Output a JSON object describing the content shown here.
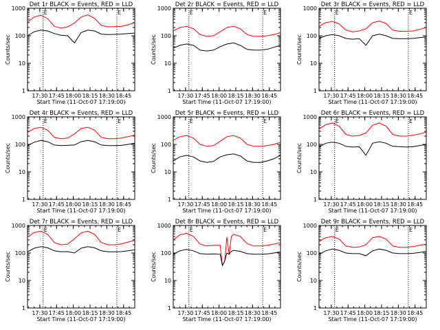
{
  "figure": {
    "background": "#ffffff",
    "colors": {
      "events": "#000000",
      "lld": "#ff0000",
      "axes": "#000000"
    }
  },
  "chart_data": [
    {
      "type": "line",
      "title": "Det 1r BLACK = Events, RED = LLD",
      "xlabel": "Start Time (11-Oct-07 17:19:00)",
      "ylabel": "Counts/sec",
      "yscale": "log",
      "ylim": [
        1,
        1000
      ],
      "xlim": [
        "17:19:00",
        "18:55:00"
      ],
      "xticks": [
        "17:30",
        "17:45",
        "18:00",
        "18:15",
        "18:30",
        "18:45"
      ],
      "yticks": [
        "1",
        "10",
        "100",
        "1000"
      ],
      "flags": [
        "E",
        "E"
      ],
      "x": [
        "17:19",
        "17:25",
        "17:31",
        "17:37",
        "17:43",
        "17:49",
        "17:55",
        "18:01",
        "18:07",
        "18:13",
        "18:19",
        "18:25",
        "18:31",
        "18:37",
        "18:43",
        "18:49",
        "18:55"
      ],
      "series": [
        {
          "name": "LLD",
          "color": "#ff0000",
          "values": [
            320,
            480,
            560,
            420,
            220,
            190,
            210,
            290,
            480,
            580,
            430,
            240,
            210,
            215,
            220,
            250,
            300
          ]
        },
        {
          "name": "Events",
          "color": "#000000",
          "values": [
            100,
            140,
            160,
            150,
            120,
            105,
            100,
            55,
            130,
            160,
            150,
            115,
            110,
            112,
            115,
            120,
            125
          ]
        }
      ]
    },
    {
      "type": "line",
      "title": "Det 2r BLACK = Events, RED = LLD",
      "xlabel": "Start Time (11-Oct-07 17:19:00)",
      "ylabel": "Counts/sec",
      "yscale": "log",
      "ylim": [
        1,
        1000
      ],
      "xlim": [
        "17:19:00",
        "18:55:00"
      ],
      "xticks": [
        "17:30",
        "17:45",
        "18:00",
        "18:15",
        "18:30",
        "18:45"
      ],
      "yticks": [
        "1",
        "10",
        "100",
        "1000"
      ],
      "flags": [
        "E",
        "E"
      ],
      "x": [
        "17:19",
        "17:25",
        "17:31",
        "17:37",
        "17:43",
        "17:49",
        "17:55",
        "18:01",
        "18:07",
        "18:13",
        "18:19",
        "18:25",
        "18:31",
        "18:37",
        "18:43",
        "18:49",
        "18:55"
      ],
      "series": [
        {
          "name": "LLD",
          "color": "#ff0000",
          "values": [
            150,
            200,
            220,
            180,
            110,
            95,
            100,
            140,
            200,
            220,
            180,
            110,
            95,
            95,
            100,
            110,
            130
          ]
        },
        {
          "name": "Events",
          "color": "#000000",
          "values": [
            35,
            45,
            50,
            45,
            30,
            28,
            30,
            40,
            50,
            55,
            45,
            32,
            30,
            30,
            32,
            38,
            45
          ]
        }
      ]
    },
    {
      "type": "line",
      "title": "Det 3r BLACK = Events, RED = LLD",
      "xlabel": "Start Time (11-Oct-07 17:19:00)",
      "ylabel": "Counts/sec",
      "yscale": "log",
      "ylim": [
        1,
        1000
      ],
      "xlim": [
        "17:19:00",
        "18:55:00"
      ],
      "xticks": [
        "17:30",
        "17:45",
        "18:00",
        "18:15",
        "18:30",
        "18:45"
      ],
      "yticks": [
        "1",
        "10",
        "100",
        "1000"
      ],
      "flags": [
        "E",
        "E"
      ],
      "x": [
        "17:19",
        "17:25",
        "17:31",
        "17:37",
        "17:43",
        "17:49",
        "17:55",
        "18:01",
        "18:07",
        "18:13",
        "18:19",
        "18:25",
        "18:31",
        "18:37",
        "18:43",
        "18:49",
        "18:55"
      ],
      "series": [
        {
          "name": "LLD",
          "color": "#ff0000",
          "values": [
            220,
            300,
            330,
            270,
            160,
            140,
            150,
            180,
            300,
            340,
            280,
            160,
            145,
            145,
            150,
            170,
            200
          ]
        },
        {
          "name": "Events",
          "color": "#000000",
          "values": [
            80,
            100,
            110,
            100,
            80,
            75,
            78,
            45,
            100,
            115,
            100,
            80,
            78,
            78,
            80,
            85,
            90
          ]
        }
      ]
    },
    {
      "type": "line",
      "title": "Det 4r BLACK = Events, RED = LLD",
      "xlabel": "Start Time (11-Oct-07 17:19:00)",
      "ylabel": "Counts/sec",
      "yscale": "log",
      "ylim": [
        1,
        1000
      ],
      "xlim": [
        "17:19:00",
        "18:55:00"
      ],
      "xticks": [
        "17:30",
        "17:45",
        "18:00",
        "18:15",
        "18:30",
        "18:45"
      ],
      "yticks": [
        "1",
        "10",
        "100",
        "1000"
      ],
      "flags": [
        "E",
        "E"
      ],
      "x": [
        "17:19",
        "17:25",
        "17:31",
        "17:37",
        "17:43",
        "17:49",
        "17:55",
        "18:01",
        "18:07",
        "18:13",
        "18:19",
        "18:25",
        "18:31",
        "18:37",
        "18:43",
        "18:49",
        "18:55"
      ],
      "series": [
        {
          "name": "LLD",
          "color": "#ff0000",
          "values": [
            270,
            380,
            420,
            330,
            180,
            160,
            170,
            240,
            380,
            420,
            330,
            180,
            160,
            160,
            170,
            190,
            220
          ]
        },
        {
          "name": "Events",
          "color": "#000000",
          "values": [
            90,
            120,
            140,
            125,
            95,
            90,
            92,
            95,
            125,
            140,
            125,
            95,
            90,
            90,
            92,
            100,
            110
          ]
        }
      ]
    },
    {
      "type": "line",
      "title": "Det 5r BLACK = Events, RED = LLD",
      "xlabel": "Start Time (11-Oct-07 17:19:00)",
      "ylabel": "Counts/sec",
      "yscale": "log",
      "ylim": [
        1,
        1000
      ],
      "xlim": [
        "17:19:00",
        "18:55:00"
      ],
      "xticks": [
        "17:30",
        "17:45",
        "18:00",
        "18:15",
        "18:30",
        "18:45"
      ],
      "yticks": [
        "1",
        "10",
        "100",
        "1000"
      ],
      "flags": [
        "E",
        "E"
      ],
      "x": [
        "17:19",
        "17:25",
        "17:31",
        "17:37",
        "17:43",
        "17:49",
        "17:55",
        "18:01",
        "18:07",
        "18:13",
        "18:19",
        "18:25",
        "18:31",
        "18:37",
        "18:43",
        "18:49",
        "18:55"
      ],
      "series": [
        {
          "name": "LLD",
          "color": "#ff0000",
          "values": [
            140,
            190,
            210,
            170,
            100,
            85,
            90,
            130,
            190,
            210,
            170,
            100,
            85,
            85,
            90,
            100,
            120
          ]
        },
        {
          "name": "Events",
          "color": "#000000",
          "values": [
            25,
            35,
            40,
            35,
            25,
            22,
            24,
            35,
            42,
            45,
            38,
            25,
            22,
            22,
            25,
            30,
            40
          ]
        }
      ]
    },
    {
      "type": "line",
      "title": "Det 6r BLACK = Events, RED = LLD",
      "xlabel": "Start Time (11-Oct-07 17:19:00)",
      "ylabel": "Counts/sec",
      "yscale": "log",
      "ylim": [
        1,
        1000
      ],
      "xlim": [
        "17:19:00",
        "18:55:00"
      ],
      "xticks": [
        "17:30",
        "17:45",
        "18:00",
        "18:15",
        "18:30",
        "18:45"
      ],
      "yticks": [
        "1",
        "10",
        "100",
        "1000"
      ],
      "flags": [
        "E",
        "E"
      ],
      "x": [
        "17:19",
        "17:25",
        "17:31",
        "17:37",
        "17:43",
        "17:49",
        "17:55",
        "18:01",
        "18:07",
        "18:13",
        "18:19",
        "18:25",
        "18:31",
        "18:37",
        "18:43",
        "18:49",
        "18:55"
      ],
      "series": [
        {
          "name": "LLD",
          "color": "#ff0000",
          "values": [
            360,
            520,
            600,
            460,
            230,
            200,
            210,
            260,
            500,
            600,
            460,
            230,
            200,
            200,
            215,
            240,
            280
          ]
        },
        {
          "name": "Events",
          "color": "#000000",
          "values": [
            80,
            110,
            120,
            110,
            85,
            80,
            82,
            40,
            110,
            125,
            110,
            85,
            82,
            80,
            82,
            90,
            100
          ]
        }
      ]
    },
    {
      "type": "line",
      "title": "Det 7r BLACK = Events, RED = LLD",
      "xlabel": "Start Time (11-Oct-07 17:19:00)",
      "ylabel": "Counts/sec",
      "yscale": "log",
      "ylim": [
        1,
        1000
      ],
      "xlim": [
        "17:19:00",
        "18:55:00"
      ],
      "xticks": [
        "17:30",
        "17:45",
        "18:00",
        "18:15",
        "18:30",
        "18:45"
      ],
      "yticks": [
        "1",
        "10",
        "100",
        "1000"
      ],
      "flags": [
        "E",
        "E"
      ],
      "x": [
        "17:19",
        "17:25",
        "17:31",
        "17:37",
        "17:43",
        "17:49",
        "17:55",
        "18:01",
        "18:07",
        "18:13",
        "18:19",
        "18:25",
        "18:31",
        "18:37",
        "18:43",
        "18:49",
        "18:55"
      ],
      "series": [
        {
          "name": "LLD",
          "color": "#ff0000",
          "values": [
            380,
            560,
            620,
            480,
            240,
            200,
            210,
            330,
            540,
            620,
            480,
            240,
            200,
            200,
            215,
            250,
            290
          ]
        },
        {
          "name": "Events",
          "color": "#000000",
          "values": [
            110,
            150,
            170,
            155,
            120,
            110,
            112,
            100,
            150,
            170,
            155,
            120,
            110,
            110,
            112,
            120,
            130
          ]
        }
      ]
    },
    {
      "type": "line",
      "title": "Det 8r BLACK = Events, RED = LLD",
      "xlabel": "Start Time (11-Oct-07 17:19:00)",
      "ylabel": "Counts/sec",
      "yscale": "log",
      "ylim": [
        1,
        1000
      ],
      "xlim": [
        "17:19:00",
        "18:55:00"
      ],
      "xticks": [
        "17:30",
        "17:45",
        "18:00",
        "18:15",
        "18:30",
        "18:45"
      ],
      "yticks": [
        "1",
        "10",
        "100",
        "1000"
      ],
      "flags": [
        "E",
        "E"
      ],
      "x": [
        "17:19",
        "17:25",
        "17:31",
        "17:37",
        "17:43",
        "17:49",
        "17:55",
        "18:01",
        "18:03",
        "18:05",
        "18:07",
        "18:09",
        "18:11",
        "18:13",
        "18:19",
        "18:25",
        "18:31",
        "18:37",
        "18:43",
        "18:49",
        "18:55"
      ],
      "series": [
        {
          "name": "LLD",
          "color": "#ff0000",
          "values": [
            300,
            460,
            520,
            400,
            210,
            180,
            190,
            190,
            35,
            50,
            380,
            90,
            400,
            480,
            400,
            220,
            180,
            180,
            190,
            210,
            240
          ]
        },
        {
          "name": "Events",
          "color": "#000000",
          "values": [
            90,
            120,
            135,
            120,
            95,
            90,
            92,
            90,
            35,
            50,
            100,
            90,
            115,
            125,
            115,
            95,
            90,
            90,
            92,
            100,
            110
          ]
        }
      ]
    },
    {
      "type": "line",
      "title": "Det 9r BLACK = Events, RED = LLD",
      "xlabel": "Start Time (11-Oct-07 17:19:00)",
      "ylabel": "Counts/sec",
      "yscale": "log",
      "ylim": [
        1,
        1000
      ],
      "xlim": [
        "17:19:00",
        "18:55:00"
      ],
      "xticks": [
        "17:30",
        "17:45",
        "18:00",
        "18:15",
        "18:30",
        "18:45"
      ],
      "yticks": [
        "1",
        "10",
        "100",
        "1000"
      ],
      "flags": [
        "E",
        "E"
      ],
      "x": [
        "17:19",
        "17:25",
        "17:31",
        "17:37",
        "17:43",
        "17:49",
        "17:55",
        "18:01",
        "18:07",
        "18:13",
        "18:19",
        "18:25",
        "18:31",
        "18:37",
        "18:43",
        "18:49",
        "18:55"
      ],
      "series": [
        {
          "name": "LLD",
          "color": "#ff0000",
          "values": [
            260,
            360,
            400,
            320,
            180,
            160,
            165,
            200,
            360,
            400,
            320,
            180,
            160,
            160,
            170,
            190,
            210
          ]
        },
        {
          "name": "Events",
          "color": "#000000",
          "values": [
            90,
            120,
            140,
            125,
            100,
            95,
            95,
            80,
            120,
            140,
            125,
            100,
            95,
            95,
            97,
            105,
            115
          ]
        }
      ]
    }
  ]
}
